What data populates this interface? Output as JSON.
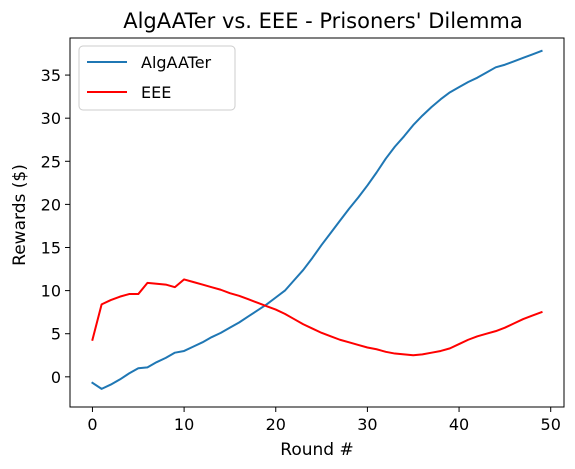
{
  "chart_data": {
    "type": "line",
    "title": "AlgAATer vs. EEE - Prisoners' Dilemma",
    "xlabel": "Round #",
    "ylabel": "Rewards ($)",
    "xlim": [
      -2.45,
      51.45
    ],
    "ylim": [
      -3.5,
      39.3
    ],
    "xticks": [
      0,
      10,
      20,
      30,
      40,
      50
    ],
    "yticks": [
      0,
      5,
      10,
      15,
      20,
      25,
      30,
      35
    ],
    "grid": false,
    "legend": "top-left",
    "x": [
      0,
      1,
      2,
      3,
      4,
      5,
      6,
      7,
      8,
      9,
      10,
      11,
      12,
      13,
      14,
      15,
      16,
      17,
      18,
      19,
      20,
      21,
      22,
      23,
      24,
      25,
      26,
      27,
      28,
      29,
      30,
      31,
      32,
      33,
      34,
      35,
      36,
      37,
      38,
      39,
      40,
      41,
      42,
      43,
      44,
      45,
      46,
      47,
      48,
      49
    ],
    "series": [
      {
        "name": "AlgAATer",
        "color": "#1f77b4",
        "values": [
          -0.7,
          -1.4,
          -0.9,
          -0.3,
          0.4,
          1.0,
          1.1,
          1.7,
          2.2,
          2.8,
          3.0,
          3.5,
          4.0,
          4.6,
          5.1,
          5.7,
          6.3,
          7.0,
          7.7,
          8.4,
          9.2,
          10.0,
          11.2,
          12.4,
          13.8,
          15.3,
          16.7,
          18.1,
          19.5,
          20.8,
          22.2,
          23.7,
          25.3,
          26.7,
          27.9,
          29.2,
          30.3,
          31.3,
          32.2,
          33.0,
          33.6,
          34.2,
          34.7,
          35.3,
          35.9,
          36.2,
          36.6,
          37.0,
          37.4,
          37.8
        ]
      },
      {
        "name": "EEE",
        "color": "#ff0000",
        "values": [
          4.3,
          8.4,
          8.9,
          9.3,
          9.6,
          9.6,
          10.9,
          10.8,
          10.7,
          10.4,
          11.3,
          11.0,
          10.7,
          10.4,
          10.1,
          9.7,
          9.4,
          9.0,
          8.6,
          8.2,
          7.8,
          7.3,
          6.7,
          6.1,
          5.6,
          5.1,
          4.7,
          4.3,
          4.0,
          3.7,
          3.4,
          3.2,
          2.9,
          2.7,
          2.6,
          2.5,
          2.6,
          2.8,
          3.0,
          3.3,
          3.8,
          4.3,
          4.7,
          5.0,
          5.3,
          5.7,
          6.2,
          6.7,
          7.1,
          7.5
        ]
      }
    ]
  }
}
